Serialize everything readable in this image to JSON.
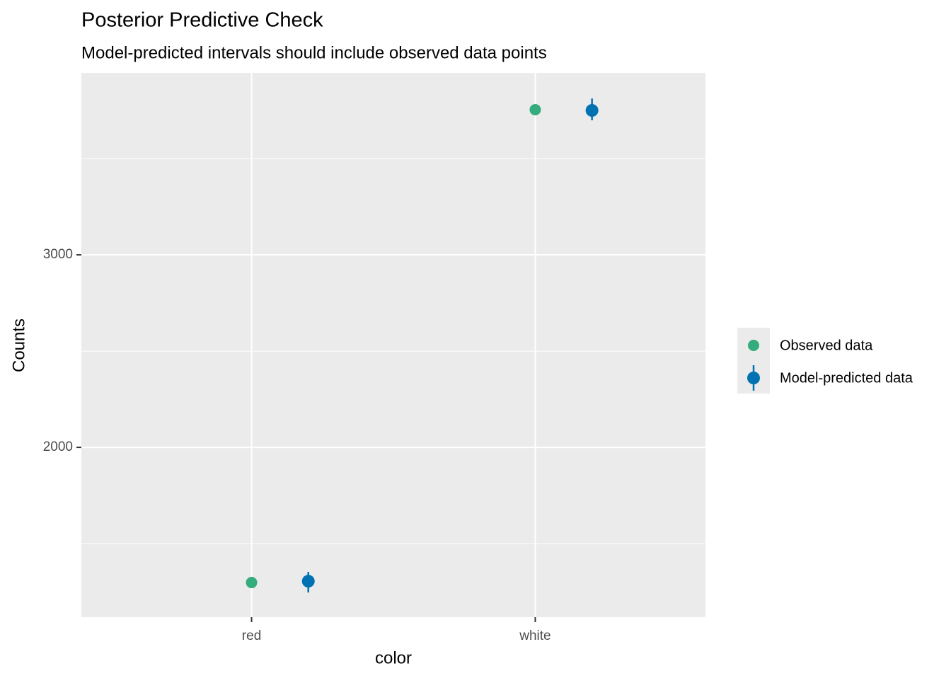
{
  "chart_data": {
    "type": "dodged-point-interval",
    "title": "Posterior Predictive Check",
    "subtitle": "Model-predicted intervals should include observed data points",
    "x_label": "color",
    "y_label": "Counts",
    "categories": [
      "red",
      "white"
    ],
    "series": [
      {
        "name": "Observed data",
        "color": "#35ac7e",
        "values": [
          1298,
          3754
        ]
      },
      {
        "name": "Model-predicted data",
        "color": "#0072b2",
        "values": [
          1305,
          3750
        ],
        "lower": [
          1246,
          3699
        ],
        "upper": [
          1353,
          3812
        ]
      }
    ],
    "ylim": [
      1118,
      3945
    ],
    "yticks": [
      2000,
      3000
    ],
    "minor_yticks": [
      1500,
      2500,
      3500
    ],
    "grid": true,
    "legend": "right"
  }
}
